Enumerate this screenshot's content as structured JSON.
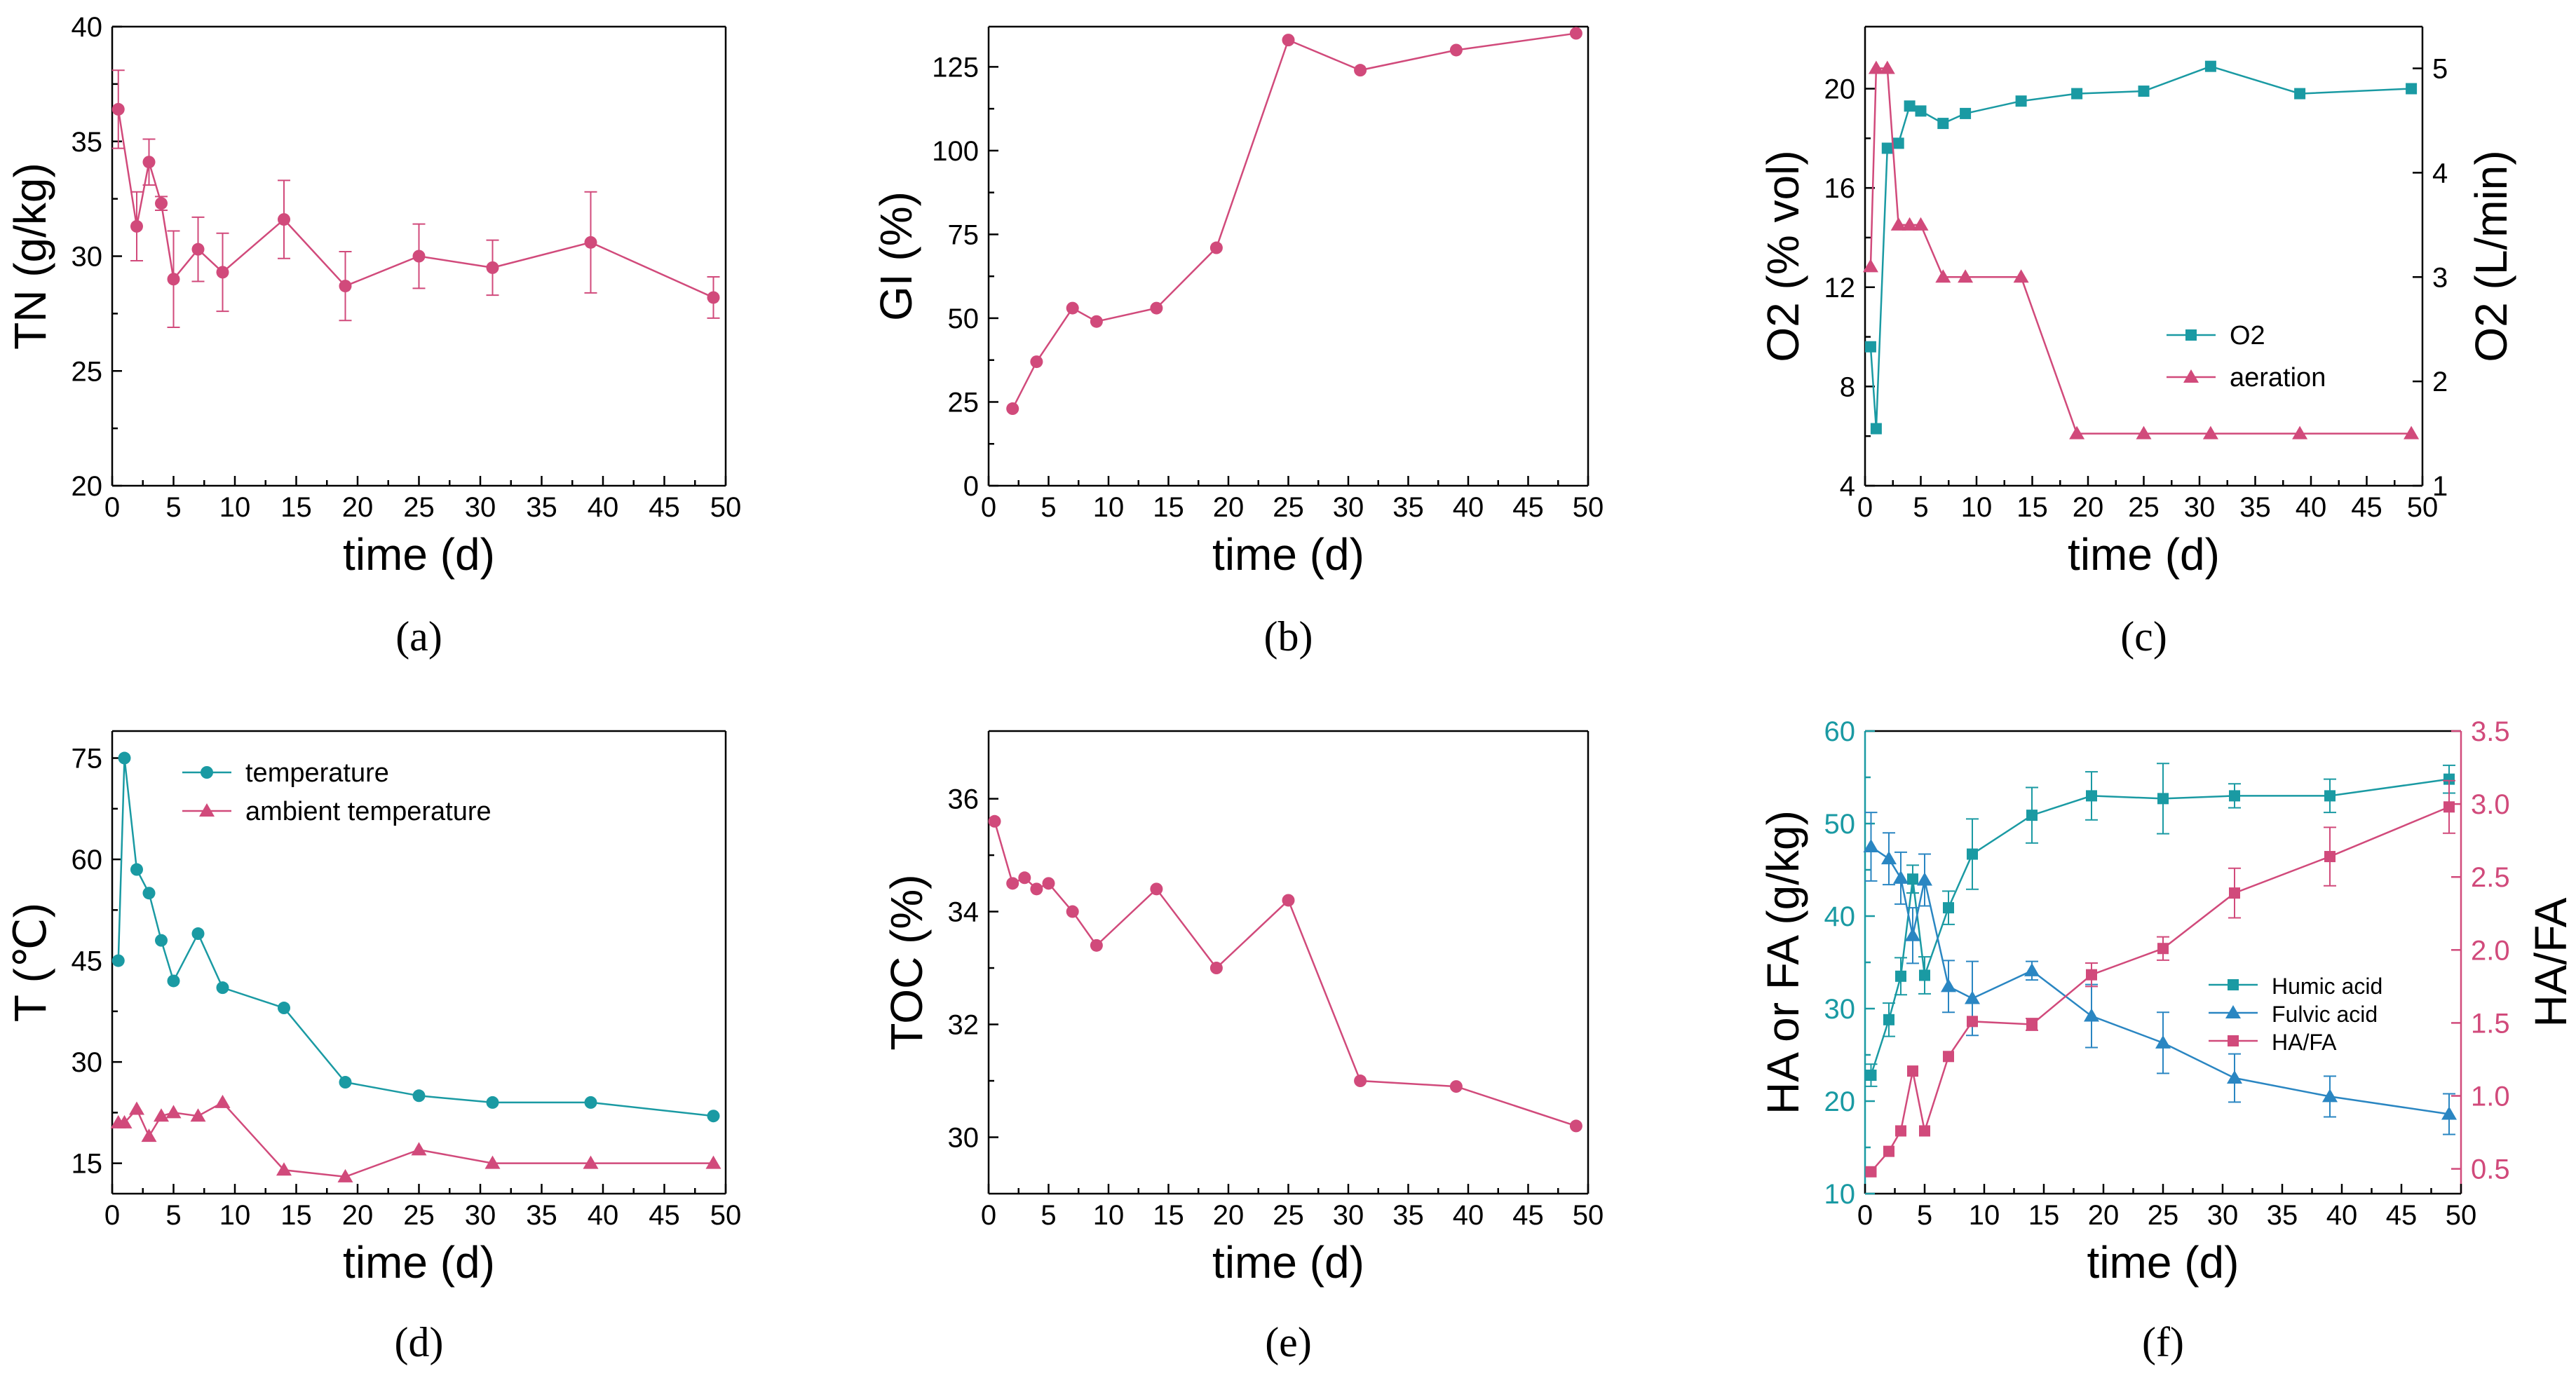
{
  "colors": {
    "pink": "#d14a7b",
    "teal": "#1a9aa3",
    "blue": "#2a86c2",
    "axis": "#000000"
  },
  "chart_data": [
    {
      "panel": "a",
      "caption": "(a)",
      "type": "line",
      "xlabel": "time (d)",
      "ylabel": "TN (g/kg)",
      "xlim": [
        0,
        50
      ],
      "ylim": [
        20,
        40
      ],
      "xticks": [
        0,
        5,
        10,
        15,
        20,
        25,
        30,
        35,
        40,
        45,
        50
      ],
      "yticks": [
        20,
        25,
        30,
        35,
        40
      ],
      "series": [
        {
          "marker": "circle",
          "color": "pink",
          "x": [
            0.5,
            2,
            3,
            4,
            5,
            7,
            9,
            14,
            19,
            25,
            31,
            39,
            49
          ],
          "y": [
            36.4,
            31.3,
            34.1,
            32.3,
            29.0,
            30.3,
            29.3,
            31.6,
            28.7,
            30.0,
            29.5,
            30.6,
            28.2
          ],
          "err": [
            1.7,
            1.5,
            1.0,
            0.3,
            2.1,
            1.4,
            1.7,
            1.7,
            1.5,
            1.4,
            1.2,
            2.2,
            0.9
          ]
        }
      ]
    },
    {
      "panel": "b",
      "caption": "(b)",
      "type": "line",
      "xlabel": "time (d)",
      "ylabel": "GI (%)",
      "xlim": [
        0,
        50
      ],
      "ylim": [
        0,
        137
      ],
      "xticks": [
        0,
        5,
        10,
        15,
        20,
        25,
        30,
        35,
        40,
        45,
        50
      ],
      "yticks": [
        0,
        25,
        50,
        75,
        100,
        125
      ],
      "series": [
        {
          "marker": "circle",
          "color": "pink",
          "x": [
            2,
            4,
            7,
            9,
            14,
            19,
            25,
            31,
            39,
            49
          ],
          "y": [
            23,
            37,
            53,
            49,
            53,
            71,
            133,
            124,
            130,
            135
          ]
        }
      ]
    },
    {
      "panel": "c",
      "caption": "(c)",
      "type": "line",
      "xlabel": "time (d)",
      "ylabel": "O2 (% vol)",
      "ylabel_right": "O2 (L/min)",
      "xlim": [
        0,
        50
      ],
      "ylim": [
        4,
        22.5
      ],
      "ylim_right": [
        1,
        5.4
      ],
      "xticks": [
        0,
        5,
        10,
        15,
        20,
        25,
        30,
        35,
        40,
        45,
        50
      ],
      "yticks": [
        4,
        8,
        12,
        16,
        20
      ],
      "yticks_right": [
        1,
        2,
        3,
        4,
        5
      ],
      "legend": [
        "O2",
        "aeration"
      ],
      "legend_position": "center-right",
      "series": [
        {
          "name": "O2",
          "marker": "square",
          "color": "teal",
          "axis": "left",
          "x": [
            0.5,
            1,
            2,
            3,
            4,
            5,
            7,
            9,
            14,
            19,
            25,
            31,
            39,
            49
          ],
          "y": [
            9.6,
            6.3,
            17.6,
            17.8,
            19.3,
            19.1,
            18.6,
            19.0,
            19.5,
            19.8,
            19.9,
            20.9,
            19.8,
            20.0
          ]
        },
        {
          "name": "aeration",
          "marker": "triangle",
          "color": "pink",
          "axis": "right",
          "x": [
            0.5,
            1,
            2,
            3,
            4,
            5,
            7,
            9,
            14,
            19,
            25,
            31,
            39,
            49
          ],
          "y": [
            3.1,
            5.0,
            5.0,
            3.5,
            3.5,
            3.5,
            3.0,
            3.0,
            3.0,
            1.5,
            1.5,
            1.5,
            1.5,
            1.5
          ]
        }
      ]
    },
    {
      "panel": "d",
      "caption": "(d)",
      "type": "line",
      "xlabel": "time (d)",
      "ylabel": "T (℃)",
      "xlim": [
        0,
        50
      ],
      "ylim": [
        10.5,
        79
      ],
      "xticks": [
        0,
        5,
        10,
        15,
        20,
        25,
        30,
        35,
        40,
        45,
        50
      ],
      "yticks": [
        15,
        30,
        45,
        60,
        75
      ],
      "legend": [
        "temperature",
        "ambient temperature"
      ],
      "legend_position": "top-center",
      "series": [
        {
          "name": "temperature",
          "marker": "circle",
          "color": "teal",
          "x": [
            0.5,
            1,
            2,
            3,
            4,
            5,
            7,
            9,
            14,
            19,
            25,
            31,
            39,
            49
          ],
          "y": [
            45,
            75,
            58.5,
            55,
            48,
            42,
            49,
            41,
            38,
            27,
            25,
            24,
            24,
            22
          ]
        },
        {
          "name": "ambient temperature",
          "marker": "triangle",
          "color": "pink",
          "x": [
            0.5,
            1,
            2,
            3,
            4,
            5,
            7,
            9,
            14,
            19,
            25,
            31,
            39,
            49
          ],
          "y": [
            21,
            21,
            23,
            19,
            22,
            22.5,
            22,
            24,
            14,
            13,
            17,
            15,
            15,
            15
          ]
        }
      ]
    },
    {
      "panel": "e",
      "caption": "(e)",
      "type": "line",
      "xlabel": "time (d)",
      "ylabel": "TOC (%)",
      "xlim": [
        0,
        50
      ],
      "ylim": [
        29,
        37.2
      ],
      "xticks": [
        0,
        5,
        10,
        15,
        20,
        25,
        30,
        35,
        40,
        45,
        50
      ],
      "yticks": [
        30,
        32,
        34,
        36
      ],
      "series": [
        {
          "marker": "circle",
          "color": "pink",
          "x": [
            0.5,
            2,
            3,
            4,
            5,
            7,
            9,
            14,
            19,
            25,
            31,
            39,
            49
          ],
          "y": [
            35.6,
            34.5,
            34.6,
            34.4,
            34.5,
            34.0,
            33.4,
            34.4,
            33.0,
            34.2,
            31.0,
            30.9,
            30.2
          ]
        }
      ]
    },
    {
      "panel": "f",
      "caption": "(f)",
      "type": "line",
      "xlabel": "time (d)",
      "ylabel": "HA or FA (g/kg)",
      "ylabel_right": "HA/FA",
      "xlim": [
        0,
        50
      ],
      "ylim": [
        10,
        60
      ],
      "ylim_right": [
        0.33,
        3.5
      ],
      "xticks": [
        0,
        5,
        10,
        15,
        20,
        25,
        30,
        35,
        40,
        45,
        50
      ],
      "yticks": [
        10,
        20,
        30,
        40,
        50,
        60
      ],
      "yticks_right": [
        0.5,
        1.0,
        1.5,
        2.0,
        2.5,
        3.0,
        3.5
      ],
      "yticks_right_labels": [
        "0.5",
        "1.0",
        "1.5",
        "2.0",
        "2.5",
        "3.0",
        "3.5"
      ],
      "legend": [
        "Humic acid",
        "Fulvic acid",
        "HA/FA"
      ],
      "legend_position": "center-right",
      "series": [
        {
          "name": "Humic acid",
          "marker": "square",
          "color": "teal",
          "axis": "left",
          "x": [
            0.5,
            2,
            3,
            4,
            5,
            7,
            9,
            14,
            19,
            25,
            31,
            39,
            49
          ],
          "y": [
            22.8,
            28.8,
            33.5,
            44.0,
            33.6,
            40.9,
            46.7,
            50.9,
            53.0,
            52.7,
            53.0,
            53.0,
            54.8
          ],
          "err": [
            1.2,
            1.8,
            2.0,
            1.5,
            2.0,
            1.8,
            3.8,
            3.0,
            2.6,
            3.8,
            1.3,
            1.8,
            1.5
          ]
        },
        {
          "name": "Fulvic acid",
          "marker": "triangle",
          "color": "blue",
          "axis": "left",
          "x": [
            0.5,
            2,
            3,
            4,
            5,
            7,
            9,
            14,
            19,
            25,
            31,
            39,
            49
          ],
          "y": [
            47.5,
            46.2,
            44.1,
            37.9,
            43.9,
            32.4,
            31.1,
            34.1,
            29.2,
            26.3,
            22.5,
            20.5,
            18.6
          ],
          "err": [
            3.7,
            2.8,
            2.8,
            3.0,
            2.8,
            2.8,
            4.0,
            1.0,
            3.4,
            3.3,
            2.6,
            2.2,
            2.2
          ]
        },
        {
          "name": "HA/FA",
          "marker": "square",
          "color": "pink",
          "axis": "right",
          "x": [
            0.5,
            2,
            3,
            4,
            5,
            7,
            9,
            14,
            19,
            25,
            31,
            39,
            49
          ],
          "y": [
            0.48,
            0.62,
            0.76,
            1.17,
            0.76,
            1.27,
            1.51,
            1.49,
            1.83,
            2.01,
            2.39,
            2.64,
            2.98
          ],
          "err": [
            0,
            0,
            0,
            0,
            0,
            0,
            0,
            0.04,
            0.08,
            0.08,
            0.17,
            0.2,
            0.18
          ]
        }
      ]
    }
  ]
}
